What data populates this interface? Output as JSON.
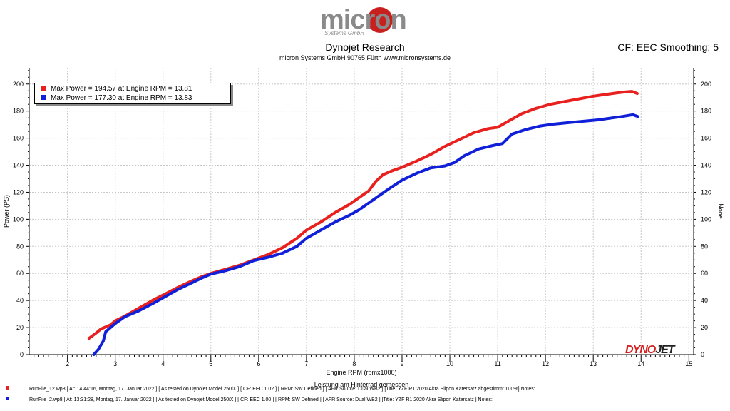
{
  "header": {
    "logo_text": "micron",
    "logo_sub": "Systems GmbH",
    "title": "Dynojet Research",
    "subtitle": "micron Systems GmbH  90765 Fürth www.micronsystems.de",
    "cf_text": "CF: EEC Smoothing: 5"
  },
  "brand": {
    "dynojet_a": "DYNO",
    "dynojet_b": "JET"
  },
  "colors": {
    "series1": "#e8201e",
    "series2": "#1020d8"
  },
  "chart_data": {
    "type": "line",
    "title": "Dynojet Research",
    "xlabel": "Engine RPM (rpmx1000)",
    "ylabel": "Power (PS)",
    "ylabel_right": "None",
    "x_note": "Leistung am Hinterrad gemessen",
    "xlim": [
      1.2,
      15.1
    ],
    "ylim": [
      0,
      212
    ],
    "xticks": [
      2,
      3,
      4,
      5,
      6,
      7,
      8,
      9,
      10,
      11,
      12,
      13,
      14,
      15
    ],
    "yticks": [
      0,
      20,
      40,
      60,
      80,
      100,
      120,
      140,
      160,
      180,
      200
    ],
    "legend": [
      "Max Power = 194.57 at Engine RPM = 13.81",
      "Max Power = 177.30 at Engine RPM = 13.83"
    ],
    "series": [
      {
        "name": "RunFile_12.wp8",
        "color": "#e8201e",
        "x": [
          2.45,
          2.6,
          2.7,
          2.9,
          3.0,
          3.2,
          3.5,
          3.8,
          4.0,
          4.3,
          4.6,
          4.8,
          5.0,
          5.3,
          5.6,
          5.9,
          6.2,
          6.5,
          6.8,
          7.0,
          7.3,
          7.6,
          7.9,
          8.1,
          8.3,
          8.45,
          8.6,
          8.8,
          9.0,
          9.3,
          9.6,
          9.9,
          10.2,
          10.5,
          10.8,
          11.0,
          11.2,
          11.5,
          11.8,
          12.1,
          12.4,
          12.7,
          13.0,
          13.3,
          13.5,
          13.7,
          13.81,
          13.92
        ],
        "values": [
          12,
          16,
          19,
          22,
          25,
          28.5,
          34.5,
          40.5,
          44,
          49.5,
          54.5,
          57.5,
          60,
          63,
          66,
          70,
          74,
          79,
          86,
          92,
          98,
          105,
          111,
          116,
          121,
          128,
          133,
          136,
          138.5,
          143,
          148,
          154,
          159,
          164,
          167,
          168,
          172,
          178,
          182,
          185,
          187,
          189,
          191,
          192.5,
          193.5,
          194.3,
          194.57,
          193
        ],
        "max_power": 194.57,
        "max_rpm": 13.81,
        "info": "RunFile_12.wp8  [ At:  14:44:16, Montag, 17. Januar 2022 ]  [ As tested on Dynojet Model 250iX ]  [ CF:  EEC 1.02 ]  [ RPM:  SW Defined ]  [ AFR Source:  Dual WB2 ]  [Title:  YZF R1 2020 Akra Slipon Katersatz abgestimmt 100%]   Notes:"
      },
      {
        "name": "RunFile_2.wp8",
        "color": "#1020d8",
        "x": [
          2.55,
          2.65,
          2.75,
          2.8,
          2.9,
          3.0,
          3.2,
          3.5,
          3.8,
          4.0,
          4.3,
          4.6,
          4.8,
          5.0,
          5.3,
          5.6,
          5.9,
          6.2,
          6.5,
          6.8,
          7.0,
          7.3,
          7.6,
          7.9,
          8.1,
          8.3,
          8.5,
          8.7,
          9.0,
          9.3,
          9.6,
          9.9,
          10.1,
          10.3,
          10.6,
          10.9,
          11.1,
          11.3,
          11.6,
          11.9,
          12.2,
          12.5,
          12.8,
          13.1,
          13.4,
          13.6,
          13.83,
          13.93
        ],
        "values": [
          0,
          4,
          10,
          17,
          20,
          23,
          28,
          32.5,
          38,
          42,
          48,
          53,
          56.5,
          59.5,
          62,
          65,
          69.5,
          72,
          75,
          80,
          86,
          92,
          98,
          103,
          107,
          112,
          117,
          122,
          129,
          134,
          138,
          139.5,
          142,
          147,
          152,
          154.5,
          156,
          163,
          166.5,
          169,
          170.5,
          171.5,
          172.5,
          173.5,
          175,
          176,
          177.3,
          176
        ],
        "max_power": 177.3,
        "max_rpm": 13.83,
        "info": "RunFile_2.wp8  [ At:  13:31:28, Montag, 17. Januar 2022 ]  [ As tested on Dynojet Model 250iX ]  [ CF:  EEC 1.00 ]  [ RPM:  SW Defined ]  [ AFR Source:  Dual WB2 ]  [Title:  YZF R1 2020 Akra Slipon Katersatz ]   Notes:"
      }
    ]
  }
}
